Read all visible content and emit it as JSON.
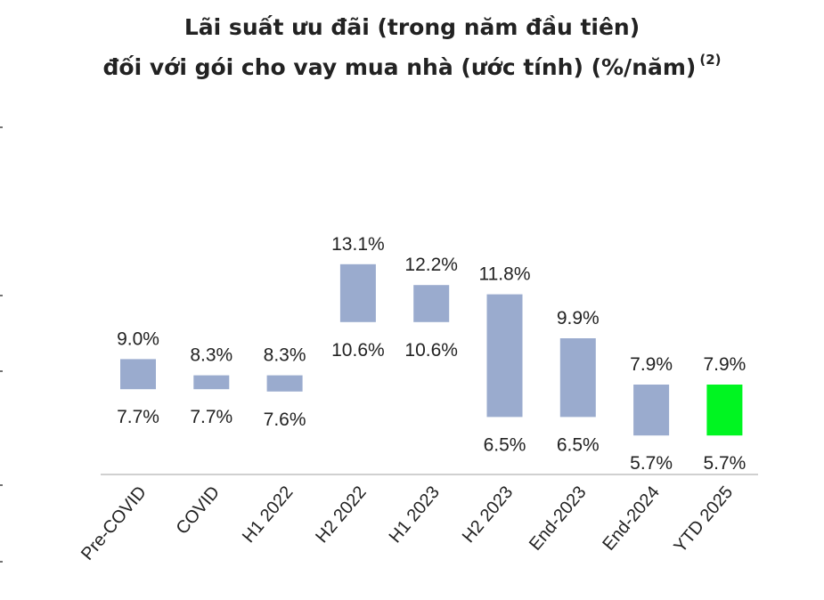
{
  "title": {
    "line1": "Lãi suất ưu đãi (trong năm đầu tiên)",
    "line2": "đối với gói cho vay mua nhà (ước tính) (%/năm)",
    "footnote": "(2)"
  },
  "chart_data": {
    "type": "bar",
    "subtype": "floating-range",
    "categories": [
      "Pre-COVID",
      "COVID",
      "H1 2022",
      "H2 2022",
      "H1 2023",
      "H2 2023",
      "End-2023",
      "End-2024",
      "YTD 2025"
    ],
    "high": [
      9.0,
      8.3,
      8.3,
      13.1,
      12.2,
      11.8,
      9.9,
      7.9,
      7.9
    ],
    "low": [
      7.7,
      7.7,
      7.6,
      10.6,
      10.6,
      6.5,
      6.5,
      5.7,
      5.7
    ],
    "high_labels": [
      "9.0%",
      "8.3%",
      "8.3%",
      "13.1%",
      "12.2%",
      "11.8%",
      "9.9%",
      "7.9%",
      "7.9%"
    ],
    "low_labels": [
      "7.7%",
      "7.7%",
      "7.6%",
      "10.6%",
      "10.6%",
      "6.5%",
      "6.5%",
      "5.7%",
      "5.7%"
    ],
    "colors": {
      "default": "#9aabce",
      "highlight": "#00f521",
      "baseline": "#d0d0d0"
    },
    "highlight_index": 8,
    "ylim": [
      4.5,
      14.0
    ],
    "grid": false,
    "legend": "none"
  }
}
